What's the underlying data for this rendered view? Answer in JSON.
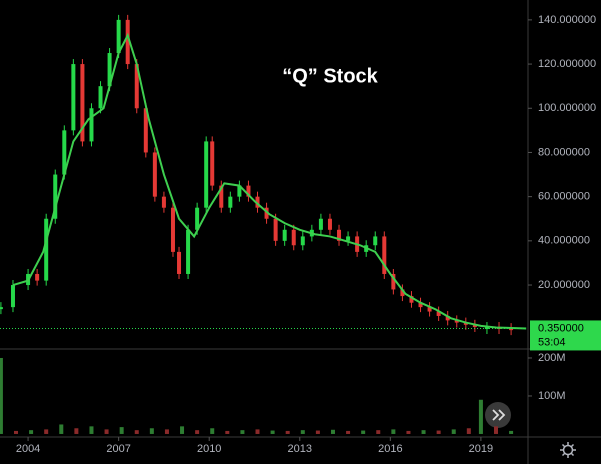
{
  "chart_data": [
    {
      "type": "candlestick",
      "title": "“Q” Stock",
      "xlim": [
        2003.07,
        2020.56
      ],
      "ylim": [
        -8.5,
        149
      ],
      "yticks": [
        {
          "value": 20,
          "label": "20.000000"
        },
        {
          "value": 40,
          "label": "40.000000"
        },
        {
          "value": 60,
          "label": "60.000000"
        },
        {
          "value": 80,
          "label": "80.000000"
        },
        {
          "value": 100,
          "label": "100.000000"
        },
        {
          "value": 120,
          "label": "120.000000"
        },
        {
          "value": 140,
          "label": "140.000000"
        }
      ],
      "last_price": {
        "value": 0.35,
        "label": "0.350000"
      },
      "countdown": "53:04",
      "series": [
        {
          "color": "#26d94a",
          "down_color": "#e53935",
          "x": [
            2003.1,
            2003.5,
            2004.0,
            2004.3,
            2004.6,
            2004.9,
            2005.2,
            2005.5,
            2005.8,
            2006.1,
            2006.4,
            2006.7,
            2007.0,
            2007.3,
            2007.6,
            2007.9,
            2008.2,
            2008.5,
            2008.8,
            2009.0,
            2009.3,
            2009.6,
            2009.9,
            2010.1,
            2010.4,
            2010.7,
            2011.0,
            2011.3,
            2011.6,
            2011.9,
            2012.2,
            2012.5,
            2012.8,
            2013.1,
            2013.4,
            2013.7,
            2014.0,
            2014.3,
            2014.6,
            2014.9,
            2015.2,
            2015.5,
            2015.8,
            2016.1,
            2016.4,
            2016.7,
            2017.0,
            2017.3,
            2017.6,
            2017.9,
            2018.2,
            2018.5,
            2018.8,
            2019.2,
            2019.6,
            2020.0
          ],
          "values": [
            10,
            20,
            25,
            22,
            50,
            70,
            90,
            120,
            85,
            100,
            110,
            125,
            140,
            120,
            100,
            80,
            60,
            55,
            35,
            25,
            45,
            55,
            85,
            65,
            55,
            60,
            65,
            60,
            55,
            50,
            40,
            45,
            38,
            42,
            45,
            50,
            45,
            40,
            42,
            35,
            38,
            42,
            25,
            18,
            15,
            12,
            10,
            8,
            6,
            4,
            3,
            2,
            1,
            1,
            0.5,
            0.35
          ]
        },
        {
          "color": "#3ecf4f",
          "x": [
            2003.5,
            2004.0,
            2004.5,
            2005.0,
            2005.5,
            2006.0,
            2006.5,
            2007.0,
            2007.3,
            2007.6,
            2008.0,
            2008.5,
            2009.0,
            2009.5,
            2010.0,
            2010.5,
            2011.0,
            2011.5,
            2012.0,
            2012.5,
            2013.0,
            2013.5,
            2014.0,
            2014.5,
            2015.0,
            2015.5,
            2016.0,
            2016.5,
            2017.0,
            2017.5,
            2018.0,
            2018.5,
            2019.0,
            2019.5,
            2020.5
          ],
          "values": [
            20,
            22,
            35,
            60,
            85,
            95,
            100,
            125,
            133,
            120,
            95,
            70,
            50,
            42,
            55,
            66,
            65,
            58,
            52,
            48,
            45,
            43,
            42,
            40,
            38,
            35,
            25,
            16,
            12,
            9,
            5,
            3,
            1.5,
            0.8,
            0.35
          ]
        }
      ]
    },
    {
      "type": "bar",
      "color": "#2e7d32",
      "xlim": [
        2003.07,
        2020.56
      ],
      "ylim": [
        -8000000,
        221000000
      ],
      "yticks": [
        {
          "value": 100000000,
          "label": "100M"
        },
        {
          "value": 200000000,
          "label": "200M"
        }
      ],
      "xticks": [
        2004,
        2007,
        2010,
        2013,
        2016,
        2019
      ],
      "x": [
        2003.1,
        2003.6,
        2004.1,
        2004.6,
        2005.1,
        2005.6,
        2006.1,
        2006.6,
        2007.1,
        2007.6,
        2008.1,
        2008.6,
        2009.1,
        2009.6,
        2010.1,
        2010.6,
        2011.1,
        2011.6,
        2012.1,
        2012.6,
        2013.1,
        2013.6,
        2014.1,
        2014.6,
        2015.1,
        2015.6,
        2016.1,
        2016.6,
        2017.1,
        2017.6,
        2018.1,
        2018.6,
        2019.0,
        2019.5,
        2020.0
      ],
      "values": [
        200000000,
        8000000,
        10000000,
        12000000,
        25000000,
        15000000,
        20000000,
        12000000,
        18000000,
        10000000,
        15000000,
        12000000,
        20000000,
        10000000,
        15000000,
        8000000,
        10000000,
        12000000,
        9000000,
        8000000,
        10000000,
        9000000,
        11000000,
        8000000,
        9000000,
        10000000,
        12000000,
        8000000,
        10000000,
        9000000,
        12000000,
        15000000,
        90000000,
        20000000,
        8000000
      ]
    }
  ]
}
